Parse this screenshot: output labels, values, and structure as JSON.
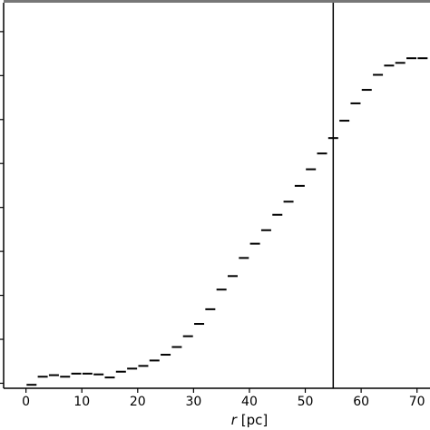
{
  "chart_data": {
    "type": "scatter",
    "marker": "horizontal-dash",
    "xlabel_var": "r",
    "xlabel_unit": " [pc]",
    "xlim": [
      -4,
      72
    ],
    "ylim": [
      0.0,
      1.0
    ],
    "x_ticks": [
      0,
      10,
      20,
      30,
      40,
      50,
      60,
      70
    ],
    "x_tick_labels": [
      "0",
      "10",
      "20",
      "30",
      "40",
      "50",
      "60",
      "70"
    ],
    "y_ticks": [
      0.013,
      0.127,
      0.241,
      0.355,
      0.469,
      0.583,
      0.697,
      0.811,
      0.925
    ],
    "y_tick_labels": [],
    "vline_x": 55,
    "grid": false,
    "points": {
      "x": [
        1,
        3,
        5,
        7,
        9,
        11,
        13,
        15,
        17,
        19,
        21,
        23,
        25,
        27,
        29,
        31,
        33,
        35,
        37,
        39,
        41,
        43,
        45,
        47,
        49,
        51,
        53,
        55,
        57,
        59,
        61,
        63,
        65,
        67,
        69,
        71
      ],
      "y": [
        0.009,
        0.03,
        0.034,
        0.03,
        0.038,
        0.038,
        0.036,
        0.028,
        0.043,
        0.051,
        0.058,
        0.072,
        0.087,
        0.107,
        0.135,
        0.167,
        0.205,
        0.256,
        0.291,
        0.338,
        0.375,
        0.41,
        0.45,
        0.484,
        0.525,
        0.568,
        0.609,
        0.649,
        0.694,
        0.739,
        0.774,
        0.813,
        0.837,
        0.844,
        0.856,
        0.856
      ]
    },
    "colors": {
      "marker": "#000000",
      "vline": "#000000",
      "axes": "#000000",
      "top_band": "#777777",
      "background": "#ffffff"
    }
  }
}
